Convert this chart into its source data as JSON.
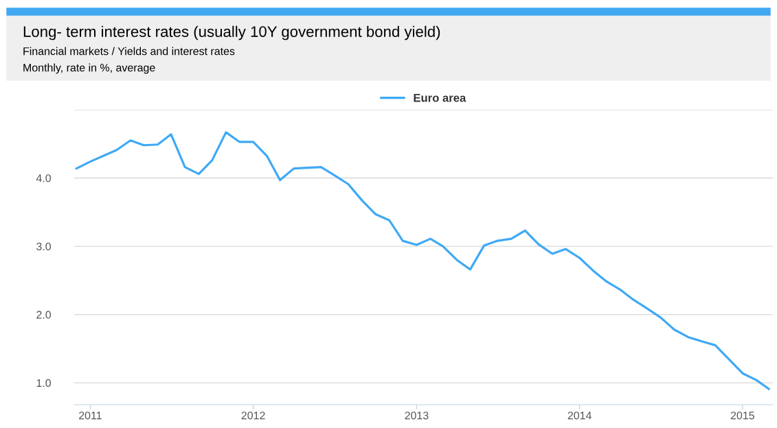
{
  "chart_data": {
    "type": "line",
    "title": "Long- term interest rates (usually 10Y government bond yield)",
    "subtitle": "Financial markets / Yields and interest rates",
    "annotations": [
      "Monthly, rate in %, average"
    ],
    "x": [
      "2010-12",
      "2011-01",
      "2011-02",
      "2011-03",
      "2011-04",
      "2011-05",
      "2011-06",
      "2011-07",
      "2011-08",
      "2011-09",
      "2011-10",
      "2011-11",
      "2011-12",
      "2012-01",
      "2012-02",
      "2012-03",
      "2012-04",
      "2012-05",
      "2012-06",
      "2012-07",
      "2012-08",
      "2012-09",
      "2012-10",
      "2012-11",
      "2012-12",
      "2013-01",
      "2013-02",
      "2013-03",
      "2013-04",
      "2013-05",
      "2013-06",
      "2013-07",
      "2013-08",
      "2013-09",
      "2013-10",
      "2013-11",
      "2013-12",
      "2014-01",
      "2014-02",
      "2014-03",
      "2014-04",
      "2014-05",
      "2014-06",
      "2014-07",
      "2014-08",
      "2014-09",
      "2014-10",
      "2014-11",
      "2014-12",
      "2015-01",
      "2015-02",
      "2015-03"
    ],
    "series": [
      {
        "name": "Euro area",
        "color": "#3fa9f5",
        "values": [
          4.14,
          4.24,
          4.33,
          4.41,
          4.55,
          4.48,
          4.49,
          4.64,
          4.16,
          4.06,
          4.26,
          4.67,
          4.53,
          4.53,
          4.32,
          3.97,
          4.14,
          4.15,
          4.16,
          4.04,
          3.91,
          3.67,
          3.47,
          3.38,
          3.08,
          3.02,
          3.11,
          3.0,
          2.8,
          2.66,
          3.01,
          3.08,
          3.11,
          3.23,
          3.03,
          2.89,
          2.96,
          2.83,
          2.64,
          2.49,
          2.37,
          2.22,
          2.09,
          1.96,
          1.78,
          1.67,
          1.61,
          1.55,
          1.35,
          1.14,
          1.04,
          0.91
        ]
      }
    ],
    "xlim": [
      "2010-11-26",
      "2015-03-10"
    ],
    "xticks": [
      "2011",
      "2012",
      "2013",
      "2014",
      "2015"
    ],
    "ylim": [
      0.68,
      5.0
    ],
    "yticks": [
      {
        "value": 1.0,
        "label": "1.0"
      },
      {
        "value": 2.0,
        "label": "2.0"
      },
      {
        "value": 3.0,
        "label": "3.0"
      },
      {
        "value": 4.0,
        "label": "4.0"
      },
      {
        "value": 5.0,
        "label": null
      }
    ],
    "grid": "y",
    "legend": "top",
    "marker": "none",
    "line_style": "solid"
  }
}
